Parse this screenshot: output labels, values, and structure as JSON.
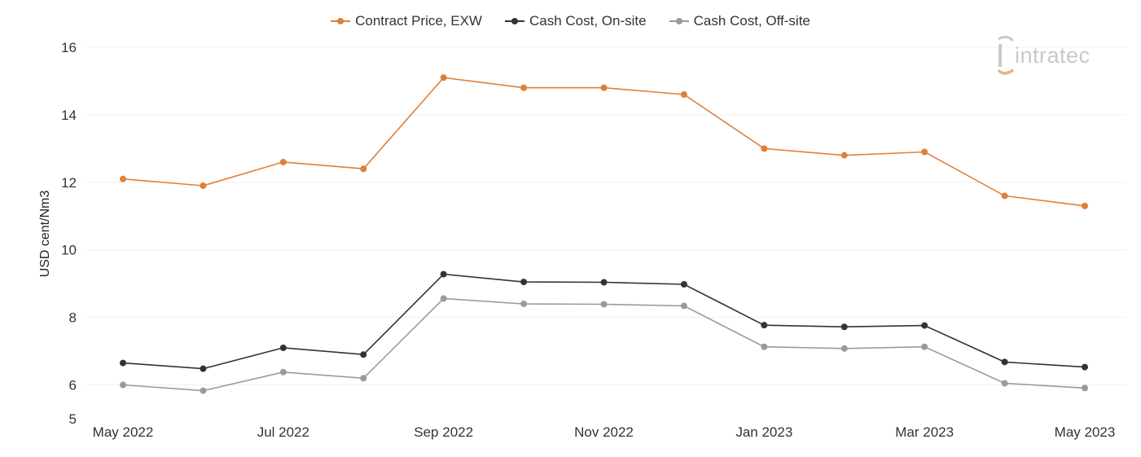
{
  "chart_data": {
    "type": "line",
    "title": "",
    "xlabel": "",
    "ylabel": "USD cent/Nm3",
    "ylim": [
      5,
      16
    ],
    "yticks": [
      5,
      6,
      8,
      10,
      12,
      14,
      16
    ],
    "categories": [
      "May 2022",
      "Jun 2022",
      "Jul 2022",
      "Aug 2022",
      "Sep 2022",
      "Oct 2022",
      "Nov 2022",
      "Dec 2022",
      "Jan 2023",
      "Feb 2023",
      "Mar 2023",
      "Apr 2023",
      "May 2023"
    ],
    "xtick_labels": [
      "May 2022",
      "Jul 2022",
      "Sep 2022",
      "Nov 2022",
      "Jan 2023",
      "Mar 2023",
      "May 2023"
    ],
    "grid": true,
    "legend_position": "top-center",
    "series": [
      {
        "name": "Contract Price, EXW",
        "color": "#e07f38",
        "values": [
          12.1,
          11.9,
          12.6,
          12.4,
          15.1,
          14.8,
          14.8,
          14.6,
          13.0,
          12.8,
          12.9,
          11.6,
          11.3
        ]
      },
      {
        "name": "Cash Cost, On-site",
        "color": "#333333",
        "values": [
          6.65,
          6.48,
          7.1,
          6.9,
          9.28,
          9.05,
          9.04,
          8.98,
          7.77,
          7.72,
          7.76,
          6.68,
          6.53
        ]
      },
      {
        "name": "Cash Cost, Off-site",
        "color": "#9a9a9a",
        "values": [
          6.0,
          5.83,
          6.38,
          6.2,
          8.56,
          8.4,
          8.39,
          8.34,
          7.13,
          7.08,
          7.13,
          6.05,
          5.91
        ]
      }
    ]
  },
  "logo": {
    "text": "intratec"
  }
}
